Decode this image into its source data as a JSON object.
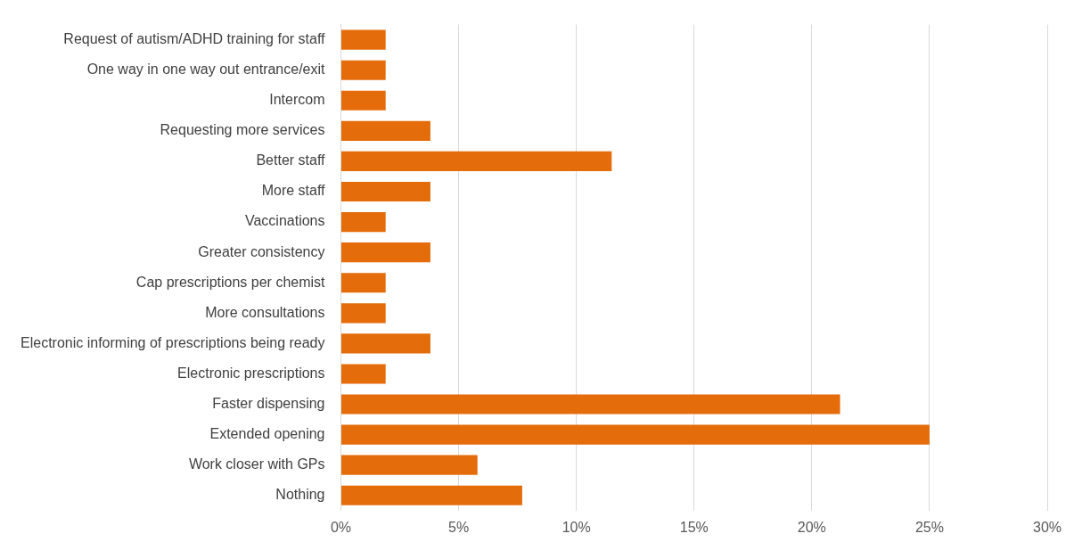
{
  "chart_data": {
    "type": "bar",
    "orientation": "horizontal",
    "categories": [
      "Request of autism/ADHD training for staff",
      "One way in one way out entrance/exit",
      "Intercom",
      "Requesting more services",
      "Better staff",
      "More staff",
      "Vaccinations",
      "Greater consistency",
      "Cap prescriptions per chemist",
      "More consultations",
      "Electronic informing of prescriptions being ready",
      "Electronic prescriptions",
      "Faster dispensing",
      "Extended opening",
      "Work closer with GPs",
      "Nothing"
    ],
    "values": [
      1.9,
      1.9,
      1.9,
      3.8,
      11.5,
      3.8,
      1.9,
      3.8,
      1.9,
      1.9,
      3.8,
      1.9,
      21.2,
      25.0,
      5.8,
      7.7
    ],
    "color": "#e46c0a",
    "xlim": [
      0,
      30
    ],
    "xticks": [
      {
        "value": 0,
        "label": "0%"
      },
      {
        "value": 5,
        "label": "5%"
      },
      {
        "value": 10,
        "label": "10%"
      },
      {
        "value": 15,
        "label": "15%"
      },
      {
        "value": 20,
        "label": "20%"
      },
      {
        "value": 25,
        "label": "25%"
      },
      {
        "value": 30,
        "label": "30%"
      }
    ],
    "grid": "x",
    "legend": false
  }
}
